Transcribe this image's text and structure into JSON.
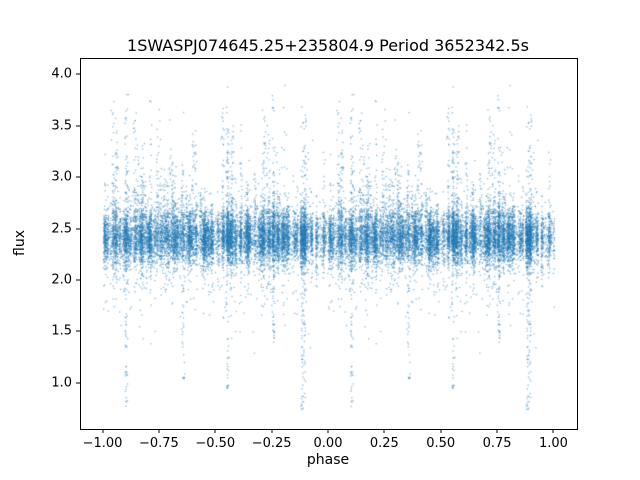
{
  "page": {
    "background": "#ffffff"
  },
  "chart_data": {
    "type": "scatter",
    "title": "1SWASPJ074645.25+235804.9 Period 3652342.5s",
    "xlabel": "phase",
    "ylabel": "flux",
    "xlim": [
      -1.1,
      1.1
    ],
    "ylim": [
      0.56,
      4.16
    ],
    "grid": false,
    "legend": null,
    "marker": {
      "color": "#1f77b4",
      "size": 1,
      "alpha": 0.5
    },
    "xticks": {
      "values": [
        -1.0,
        -0.75,
        -0.5,
        -0.25,
        0.0,
        0.25,
        0.5,
        0.75,
        1.0
      ],
      "labels": [
        "−1.00",
        "−0.75",
        "−0.50",
        "−0.25",
        "0.00",
        "0.25",
        "0.50",
        "0.75",
        "1.00"
      ]
    },
    "yticks": {
      "values": [
        1.0,
        1.5,
        2.0,
        2.5,
        3.0,
        3.5,
        4.0
      ],
      "labels": [
        "1.0",
        "1.5",
        "2.0",
        "2.5",
        "3.0",
        "3.5",
        "4.0"
      ]
    },
    "distribution": {
      "description": "Folded light curve: dense flux band ~2.2-2.7 with vertical observation streaks, high outliers to ~3.97 and deep low streaks to ~0.74; data duplicated over phase -1..0 and 0..1",
      "seed": 20240701,
      "n_points": 13000,
      "n_streaks": 150,
      "streak_point_fraction": 0.78,
      "streak_jitter": 0.0032,
      "band": {
        "mean": 2.42,
        "sd": 0.125
      },
      "wide_scatter": {
        "fraction": 0.1,
        "sd": 0.3
      },
      "low_tail": {
        "fraction": 0.013,
        "depth": 1.05
      },
      "tall_streak_fraction": 0.3,
      "tall_min_top": 2.9,
      "tall_max_top": 3.97,
      "tall_point_fraction": 0.09,
      "deep_point_fraction": 0.22,
      "y_min": 0.73,
      "y_max": 3.99,
      "deep_streaks": [
        {
          "phase": 0.1,
          "min": 0.78,
          "boost": 3
        },
        {
          "phase": 0.355,
          "min": 1.05,
          "boost": 2
        },
        {
          "phase": 0.55,
          "min": 0.95,
          "boost": 2
        },
        {
          "phase": 0.755,
          "min": 1.4,
          "boost": 2
        },
        {
          "phase": 0.882,
          "min": 0.74,
          "boost": 4
        },
        {
          "phase": 0.892,
          "min": 0.8,
          "boost": 2
        }
      ],
      "gaps": [
        {
          "phase": 0.868,
          "halfwidth": 0.004
        },
        {
          "phase": 0.935,
          "halfwidth": 0.006
        }
      ]
    }
  }
}
